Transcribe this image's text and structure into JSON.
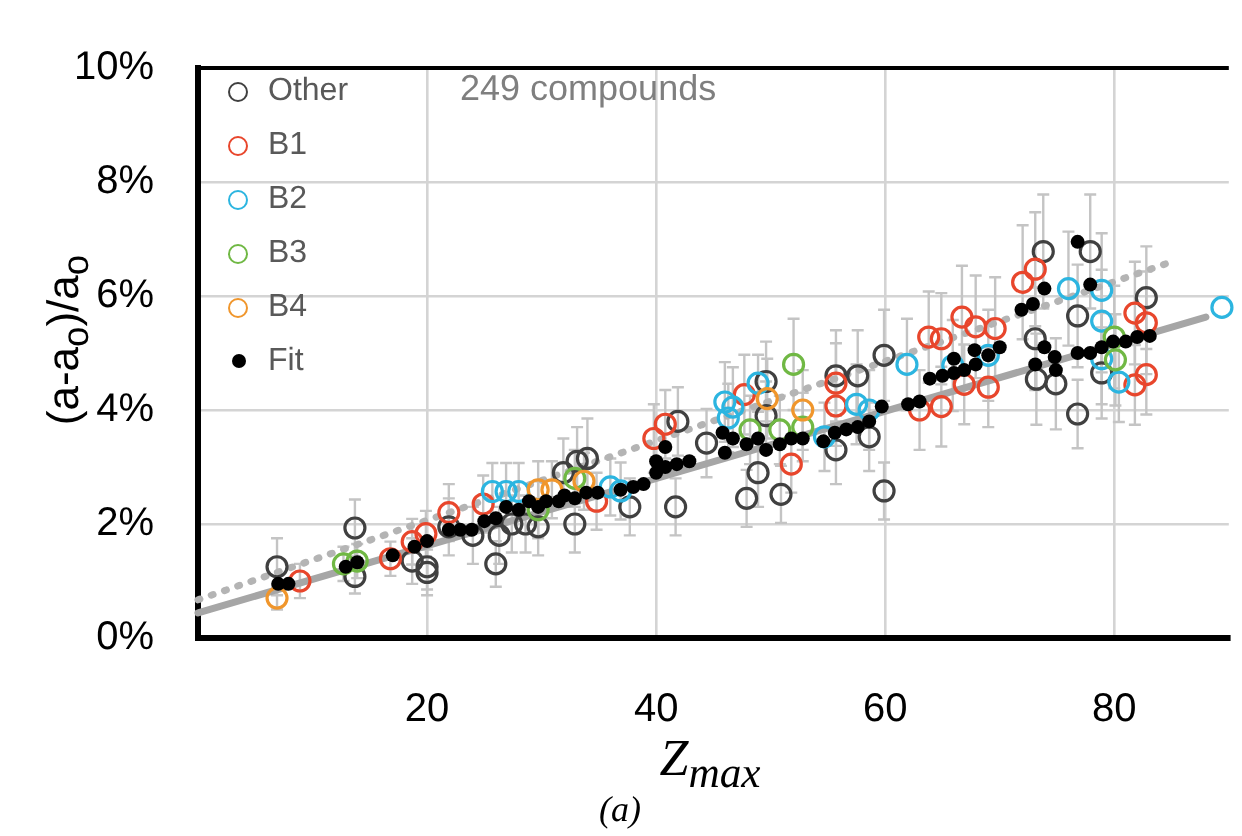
{
  "chart_data": {
    "type": "scatter",
    "xlabel": "Z$_{max}$",
    "ylabel": "(a-a$_{o}$)/a$_{o}$",
    "annotations": [
      "249 compounds",
      "(a)"
    ],
    "xlim": [
      0,
      90
    ],
    "xticks": [
      20,
      40,
      60,
      80
    ],
    "ylim": [
      0,
      10
    ],
    "yticks": [
      {
        "value": 0,
        "label": "0%"
      },
      {
        "value": 2,
        "label": "2%"
      },
      {
        "value": 4,
        "label": "4%"
      },
      {
        "value": 6,
        "label": "6%"
      },
      {
        "value": 8,
        "label": "8%"
      },
      {
        "value": 10,
        "label": "10%"
      }
    ],
    "grid": true,
    "legend": "top left",
    "marker": "circle",
    "series": [
      {
        "name": "Other",
        "color": "#404040",
        "x": [
          6.9,
          13.7,
          13.7,
          18.7,
          20,
          20,
          21.9,
          24,
          26,
          26.3,
          27.4,
          28.6,
          29.7,
          31.9,
          32.9,
          33.1,
          34,
          37.7,
          41.7,
          41.9,
          44.4,
          47.9,
          48.9,
          49.6,
          49.6,
          50.9,
          55.7,
          55.7,
          57.6,
          58.6,
          59.9,
          59.9,
          73.1,
          73.2,
          73.8,
          74.9,
          76.8,
          76.8,
          77.9,
          78.9,
          82.8
        ],
        "values": [
          1.25,
          1.93,
          1.08,
          1.35,
          1.25,
          1.15,
          1.95,
          1.8,
          1.3,
          1.8,
          2.0,
          2.0,
          1.95,
          2.9,
          2.0,
          3.1,
          3.15,
          2.3,
          2.3,
          3.8,
          3.42,
          2.45,
          2.9,
          4.5,
          3.9,
          2.52,
          4.6,
          3.3,
          4.6,
          3.53,
          4.96,
          2.58,
          5.25,
          4.54,
          6.78,
          4.46,
          3.93,
          5.65,
          6.78,
          4.65,
          5.97
        ],
        "errors": [
          0.5,
          0.5,
          0.3,
          0.4,
          0.4,
          0.4,
          0.5,
          0.5,
          0.4,
          0.5,
          0.5,
          0.5,
          0.5,
          0.6,
          0.5,
          0.6,
          0.7,
          0.5,
          0.5,
          0.6,
          0.6,
          0.5,
          0.6,
          0.7,
          0.6,
          0.5,
          0.8,
          0.6,
          0.8,
          0.6,
          0.8,
          0.5,
          0.9,
          0.8,
          1.0,
          0.8,
          0.6,
          0.9,
          1.0,
          0.8,
          0.9
        ]
      },
      {
        "name": "B1",
        "color": "#e8462c",
        "x": [
          8.9,
          16.8,
          18.7,
          19.9,
          21.9,
          24.9,
          34.8,
          39.8,
          40.8,
          47.7,
          51.8,
          55.7,
          55.7,
          63,
          63.8,
          64.9,
          64.9,
          66.7,
          66.9,
          67.9,
          69,
          69.6,
          72,
          73.1,
          81.8,
          81.8,
          82.8,
          82.8
        ],
        "values": [
          1.0,
          1.39,
          1.69,
          1.83,
          2.2,
          2.35,
          2.4,
          3.5,
          3.75,
          4.27,
          3.05,
          4.47,
          4.07,
          4.0,
          5.28,
          5.25,
          4.06,
          5.63,
          4.45,
          5.46,
          4.4,
          5.43,
          6.24,
          6.47,
          5.7,
          4.44,
          5.53,
          4.62
        ],
        "errors": [
          0.3,
          0.3,
          0.4,
          0.4,
          0.5,
          0.5,
          0.5,
          0.6,
          0.6,
          0.7,
          0.5,
          0.7,
          0.7,
          0.7,
          0.8,
          0.8,
          0.7,
          0.9,
          0.7,
          0.9,
          0.7,
          0.9,
          1.0,
          1.0,
          0.9,
          0.7,
          0.9,
          0.7
        ]
      },
      {
        "name": "B2",
        "color": "#2cb5e0",
        "x": [
          25.7,
          26.9,
          28,
          36,
          36.9,
          46,
          46.3,
          46.7,
          48.9,
          54.7,
          57.5,
          58.6,
          61.9,
          65.9,
          69,
          76,
          78.9,
          78.9,
          78.9,
          80.4,
          89.4
        ],
        "values": [
          2.57,
          2.57,
          2.57,
          2.65,
          2.58,
          4.14,
          3.86,
          4.05,
          4.47,
          3.53,
          4.1,
          4.0,
          4.8,
          4.78,
          4.96,
          6.13,
          6.1,
          5.56,
          4.9,
          4.49,
          5.8
        ],
        "errors": [
          0.5,
          0.5,
          0.5,
          0.5,
          0.5,
          0.7,
          0.6,
          0.7,
          0.5,
          0.6,
          0.7,
          0.7,
          0.8,
          0.8,
          0.8,
          1.0,
          1.0,
          0.9,
          0.8,
          0.7,
          null
        ]
      },
      {
        "name": "B3",
        "color": "#70b844",
        "x": [
          12.7,
          13.9,
          29.7,
          32.9,
          48.2,
          50.8,
          52,
          52.8,
          80,
          80.1
        ],
        "values": [
          1.3,
          1.35,
          2.25,
          2.8,
          3.65,
          3.65,
          4.8,
          3.7,
          5.28,
          4.88
        ],
        "errors": [
          0.3,
          0.3,
          0.5,
          0.5,
          0.6,
          0.6,
          0.8,
          0.6,
          0.9,
          0.8
        ]
      },
      {
        "name": "B4",
        "color": "#f0962c",
        "x": [
          6.9,
          29.7,
          30.9,
          33.7,
          49.7,
          52.8
        ],
        "values": [
          0.7,
          2.6,
          2.6,
          2.75,
          4.2,
          4.0
        ],
        "errors": [
          0.2,
          0.5,
          0.5,
          0.5,
          0.7,
          0.7
        ]
      },
      {
        "name": "Fit",
        "color": "#000000",
        "x": [
          7.0,
          7.9,
          12.9,
          13.9,
          17,
          18.9,
          20,
          21.9,
          22.9,
          23.9,
          25,
          26,
          26.9,
          28,
          28.9,
          29.7,
          30.4,
          31.5,
          32,
          32.9,
          33.9,
          34.9,
          36.9,
          38,
          38.9,
          40,
          40,
          40.8,
          40.8,
          41.8,
          42.9,
          45.8,
          46,
          46.7,
          47.9,
          48.9,
          49.6,
          50.8,
          51.8,
          52.8,
          54.6,
          55.6,
          56.6,
          57.6,
          58.6,
          59.7,
          62,
          63,
          63.9,
          65,
          66,
          66,
          66.9,
          67.8,
          67.9,
          69,
          70,
          71.9,
          72.9,
          73.1,
          73.9,
          73.9,
          74.8,
          74.9,
          76.8,
          76.8,
          77.9,
          77.9,
          78.9,
          79.9,
          81,
          82,
          83.1
        ],
        "values": [
          0.95,
          0.95,
          1.25,
          1.33,
          1.45,
          1.6,
          1.7,
          1.9,
          1.9,
          1.9,
          2.05,
          2.1,
          2.3,
          2.25,
          2.4,
          2.3,
          2.4,
          2.4,
          2.5,
          2.45,
          2.55,
          2.55,
          2.6,
          2.65,
          2.7,
          2.9,
          3.1,
          3.0,
          3.35,
          3.05,
          3.1,
          3.6,
          3.25,
          3.5,
          3.4,
          3.5,
          3.3,
          3.4,
          3.5,
          3.5,
          3.45,
          3.6,
          3.66,
          3.7,
          3.8,
          4.06,
          4.1,
          4.15,
          4.55,
          4.6,
          4.65,
          4.9,
          4.7,
          5.05,
          4.8,
          4.96,
          5.1,
          5.76,
          5.86,
          4.8,
          6.13,
          5.1,
          4.93,
          4.7,
          6.95,
          5.0,
          6.2,
          5.0,
          5.1,
          5.2,
          5.2,
          5.28,
          5.3
        ]
      },
      {
        "type": "line",
        "color": "#a6a6a6",
        "x": [
          0,
          88
        ],
        "values": [
          0.44,
          5.63
        ],
        "line_style": "solid",
        "marker": "none"
      },
      {
        "type": "line",
        "color": "#b4b4b4",
        "x": [
          0,
          85
        ],
        "values": [
          0.67,
          6.6
        ],
        "line_style": "dotted",
        "marker": "none"
      }
    ]
  }
}
